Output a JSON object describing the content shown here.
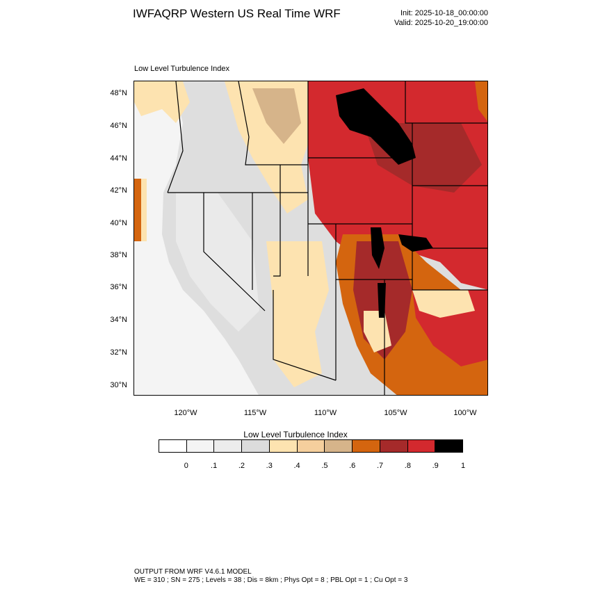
{
  "header": {
    "title": "IWFAQRP Western US Real Time WRF",
    "init": "Init: 2025-10-18_00:00:00",
    "valid": "Valid: 2025-10-20_19:00:00"
  },
  "panel": {
    "label": "Low Level Turbulence Index"
  },
  "map": {
    "lat_labels": [
      "48°N",
      "46°N",
      "44°N",
      "42°N",
      "40°N",
      "38°N",
      "36°N",
      "34°N",
      "32°N",
      "30°N"
    ],
    "lon_labels": [
      "120°W",
      "115°W",
      "110°W",
      "105°W",
      "100°W"
    ],
    "colors": {
      "ocean": "#f4f4f4",
      "land_low": "#e2e2e2",
      "land_mid": "#d2d2d2",
      "cream": "#fde3b0",
      "tan": "#d6b48a",
      "orange": "#d4650f",
      "dark_red": "#a52a2a",
      "red": "#d3292e",
      "black": "#000000"
    }
  },
  "colorbar": {
    "title": "Low Level Turbulence Index",
    "colors": [
      "#ffffff",
      "#f4f4f4",
      "#ececec",
      "#dcdcdc",
      "#fde3b0",
      "#f5cf9d",
      "#d6b48a",
      "#d4650f",
      "#a52a2a",
      "#d3292e",
      "#000000"
    ],
    "ticks": [
      "0",
      ".1",
      ".2",
      ".3",
      ".4",
      ".5",
      ".6",
      ".7",
      ".8",
      ".9",
      "1"
    ]
  },
  "footer": {
    "line1": "OUTPUT FROM WRF V4.6.1 MODEL",
    "line2": "WE = 310 ; SN = 275 ; Levels = 38 ; Dis = 8km ; Phys Opt = 8 ; PBL Opt = 1 ; Cu Opt = 3"
  }
}
